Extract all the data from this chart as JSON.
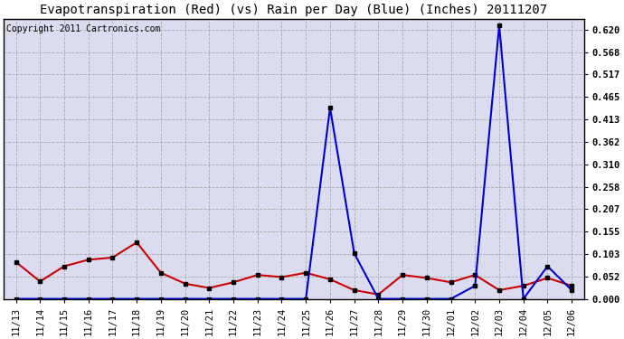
{
  "title": "Evapotranspiration (Red) (vs) Rain per Day (Blue) (Inches) 20111207",
  "copyright": "Copyright 2011 Cartronics.com",
  "labels": [
    "11/13",
    "11/14",
    "11/15",
    "11/16",
    "11/17",
    "11/18",
    "11/19",
    "11/20",
    "11/21",
    "11/22",
    "11/23",
    "11/24",
    "11/25",
    "11/26",
    "11/27",
    "11/28",
    "11/29",
    "11/30",
    "12/01",
    "12/02",
    "12/03",
    "12/04",
    "12/05",
    "12/06"
  ],
  "red_data": [
    0.085,
    0.04,
    0.075,
    0.09,
    0.095,
    0.13,
    0.06,
    0.035,
    0.025,
    0.038,
    0.055,
    0.05,
    0.06,
    0.045,
    0.02,
    0.01,
    0.055,
    0.048,
    0.038,
    0.055,
    0.02,
    0.03,
    0.048,
    0.03
  ],
  "blue_data": [
    0.0,
    0.0,
    0.0,
    0.0,
    0.0,
    0.0,
    0.0,
    0.0,
    0.0,
    0.0,
    0.0,
    0.0,
    0.0,
    0.44,
    0.105,
    0.0,
    0.0,
    0.0,
    0.0,
    0.03,
    0.63,
    0.0,
    0.075,
    0.02
  ],
  "red_color": "#cc0000",
  "blue_color": "#0000cc",
  "fig_bg": "#ffffff",
  "plot_bg": "#dcdcf0",
  "yticks": [
    0.0,
    0.052,
    0.103,
    0.155,
    0.207,
    0.258,
    0.31,
    0.362,
    0.413,
    0.465,
    0.517,
    0.568,
    0.62
  ],
  "ylim": [
    0.0,
    0.645
  ],
  "title_fontsize": 10,
  "copyright_fontsize": 7,
  "tick_fontsize": 7.5,
  "marker": "s",
  "marker_size": 3,
  "linewidth": 1.5
}
